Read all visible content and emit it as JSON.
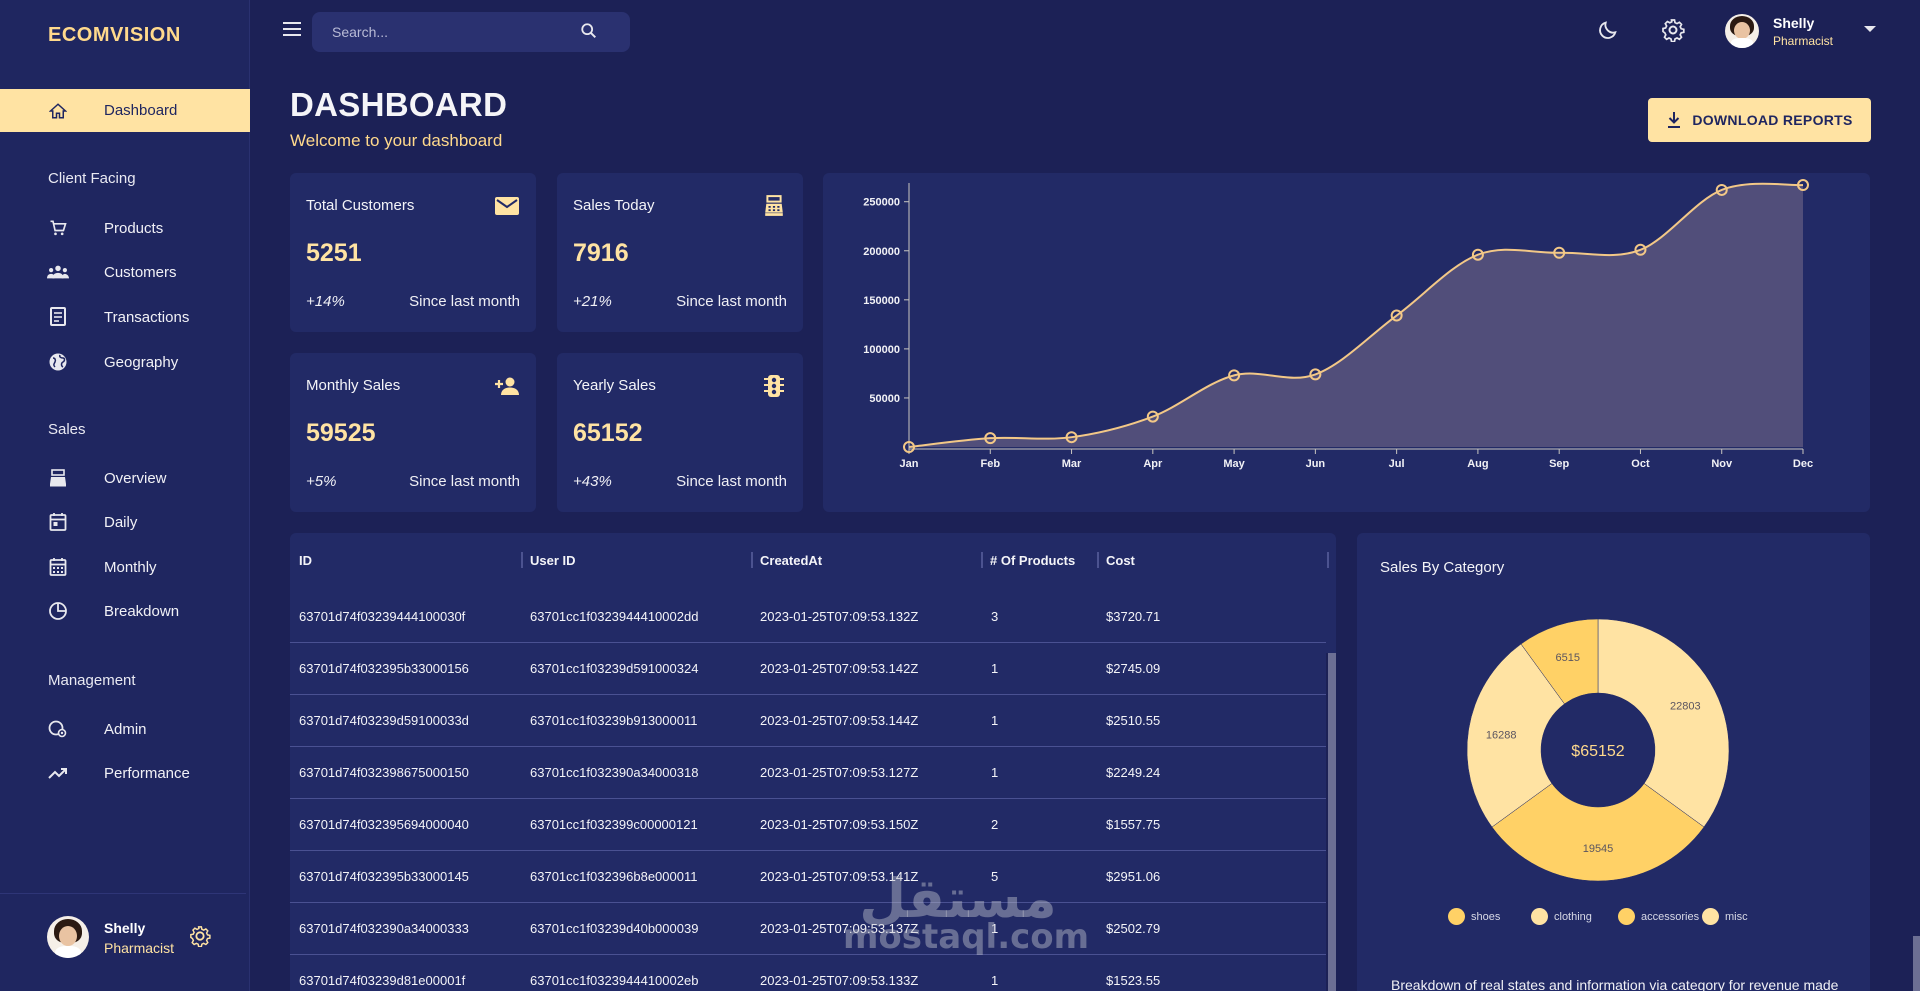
{
  "app": {
    "brand": "ECOMVISION"
  },
  "sidebar": {
    "active": {
      "label": "Dashboard",
      "icon": "home-icon"
    },
    "sections": [
      {
        "label": "Client Facing",
        "items": [
          {
            "label": "Products",
            "icon": "cart-icon"
          },
          {
            "label": "Customers",
            "icon": "groups-icon"
          },
          {
            "label": "Transactions",
            "icon": "receipt-icon"
          },
          {
            "label": "Geography",
            "icon": "globe-icon"
          }
        ]
      },
      {
        "label": "Sales",
        "items": [
          {
            "label": "Overview",
            "icon": "point-of-sale-icon"
          },
          {
            "label": "Daily",
            "icon": "calendar-day-icon"
          },
          {
            "label": "Monthly",
            "icon": "calendar-month-icon"
          },
          {
            "label": "Breakdown",
            "icon": "pie-chart-icon"
          }
        ]
      },
      {
        "label": "Management",
        "items": [
          {
            "label": "Admin",
            "icon": "admin-icon"
          },
          {
            "label": "Performance",
            "icon": "trending-up-icon"
          }
        ]
      }
    ],
    "user": {
      "name": "Shelly",
      "role": "Pharmacist"
    }
  },
  "topbar": {
    "search_placeholder": "Search...",
    "user": {
      "name": "Shelly",
      "role": "Pharmacist"
    }
  },
  "header": {
    "title": "DASHBOARD",
    "subtitle": "Welcome to your dashboard",
    "download_label": "DOWNLOAD REPORTS"
  },
  "stats": [
    {
      "title": "Total Customers",
      "value": "5251",
      "change": "+14%",
      "since": "Since last month",
      "icon": "mail-icon"
    },
    {
      "title": "Sales Today",
      "value": "7916",
      "change": "+21%",
      "since": "Since last month",
      "icon": "point-of-sale-icon"
    },
    {
      "title": "Monthly Sales",
      "value": "59525",
      "change": "+5%",
      "since": "Since last month",
      "icon": "person-add-icon"
    },
    {
      "title": "Yearly Sales",
      "value": "65152",
      "change": "+43%",
      "since": "Since last month",
      "icon": "traffic-icon"
    }
  ],
  "chart_data": [
    {
      "type": "area",
      "x": [
        "Jan",
        "Feb",
        "Mar",
        "Apr",
        "May",
        "Jun",
        "Jul",
        "Aug",
        "Sep",
        "Oct",
        "Nov",
        "Dec"
      ],
      "series": [
        {
          "values": [
            0,
            9000,
            10000,
            31000,
            73000,
            74000,
            134000,
            196000,
            198000,
            201000,
            262000,
            267000
          ]
        }
      ],
      "yticks": [
        50000,
        100000,
        150000,
        200000,
        250000
      ],
      "ylim": [
        0,
        265000
      ],
      "colors": {
        "line": "#f3c887",
        "fill": "#56527c"
      },
      "grid": false
    },
    {
      "type": "pie",
      "title": "Sales By Category",
      "center_label": "$65152",
      "categories": [
        "shoes",
        "clothing",
        "accessories",
        "misc"
      ],
      "values": [
        6515,
        22803,
        19545,
        16288
      ],
      "colors": [
        "#ffd166",
        "#ffe3a3",
        "#ffd166",
        "#ffe3a3"
      ],
      "footnote": "Breakdown of real states and information via category for revenue made"
    }
  ],
  "table": {
    "columns": [
      "ID",
      "User ID",
      "CreatedAt",
      "# Of Products",
      "Cost"
    ],
    "rows": [
      [
        "63701d74f03239444100030f",
        "63701cc1f0323944410002dd",
        "2023-01-25T07:09:53.132Z",
        "3",
        "$3720.71"
      ],
      [
        "63701d74f032395b33000156",
        "63701cc1f03239d591000324",
        "2023-01-25T07:09:53.142Z",
        "1",
        "$2745.09"
      ],
      [
        "63701d74f03239d59100033d",
        "63701cc1f03239b913000011",
        "2023-01-25T07:09:53.144Z",
        "1",
        "$2510.55"
      ],
      [
        "63701d74f032398675000150",
        "63701cc1f032390a34000318",
        "2023-01-25T07:09:53.127Z",
        "1",
        "$2249.24"
      ],
      [
        "63701d74f032395694000040",
        "63701cc1f032399c00000121",
        "2023-01-25T07:09:53.150Z",
        "2",
        "$1557.75"
      ],
      [
        "63701d74f032395b33000145",
        "63701cc1f032396b8e000011",
        "2023-01-25T07:09:53.141Z",
        "5",
        "$2951.06"
      ],
      [
        "63701d74f032390a34000333",
        "63701cc1f03239d40b000039",
        "2023-01-25T07:09:53.137Z",
        "1",
        "$2502.79"
      ],
      [
        "63701d74f03239d81e00001f",
        "63701cc1f0323944410002eb",
        "2023-01-25T07:09:53.133Z",
        "1",
        "$1523.55"
      ]
    ]
  },
  "watermark": {
    "arabic": "مستقل",
    "latin": "mostaql.com"
  }
}
